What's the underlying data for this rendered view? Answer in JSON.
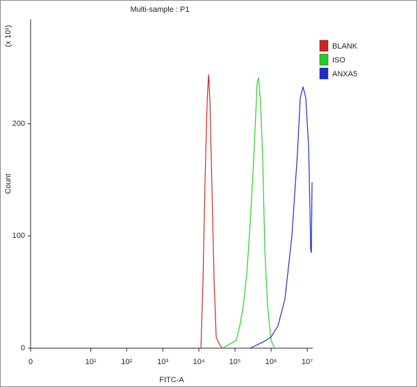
{
  "chart_data": {
    "type": "line",
    "title": "Multi-sample : P1",
    "x_label": "FITC-A",
    "y_label": "Count",
    "y_multiplier": "(x 10¹)",
    "xscale": "log",
    "xlim": [
      0,
      14250000
    ],
    "xticks": [
      0,
      {
        "value": 10,
        "label": "10¹"
      },
      {
        "value": 100,
        "label": "10²"
      },
      {
        "value": 1000,
        "label": "10³"
      },
      {
        "value": 10000,
        "label": "10⁴"
      },
      {
        "value": 100000,
        "label": "10⁵"
      },
      {
        "value": 1000000,
        "label": "10⁶"
      },
      {
        "value": 10000000,
        "label": "10⁷"
      }
    ],
    "ylim": [
      0,
      293
    ],
    "yticks": [
      0,
      100,
      200
    ],
    "legend": "top-right",
    "series": [
      {
        "name": "BLANK",
        "color": "#d42020",
        "x": [
          11430,
          13030,
          14890,
          17010,
          18590,
          20310,
          23190,
          26490,
          30250,
          37770,
          45080
        ],
        "values": [
          0,
          60,
          150,
          220,
          244,
          220,
          140,
          60,
          10,
          3,
          0
        ]
      },
      {
        "name": "ISO",
        "color": "#22d022",
        "x": [
          45080,
          109200,
          136400,
          170200,
          212400,
          265000,
          330500,
          412100,
          450800,
          515200,
          587500,
          671500,
          801700,
          1000000,
          1247000
        ],
        "values": [
          0,
          7,
          20,
          38,
          66,
          112,
          168,
          237,
          241,
          217,
          168,
          88,
          38,
          7,
          0
        ]
      },
      {
        "name": "ANXA5",
        "color": "#1c2ad0",
        "x": [
          265000,
          412100,
          642300,
          1000000,
          1557000,
          2424000,
          3774000,
          5380000,
          6423000,
          7670000,
          9156000,
          10930000,
          11940000,
          12470000,
          13030000,
          13640000
        ],
        "values": [
          0,
          3,
          6,
          10,
          20,
          44,
          100,
          174,
          223,
          233,
          223,
          180,
          125,
          88,
          85,
          148
        ]
      }
    ]
  }
}
